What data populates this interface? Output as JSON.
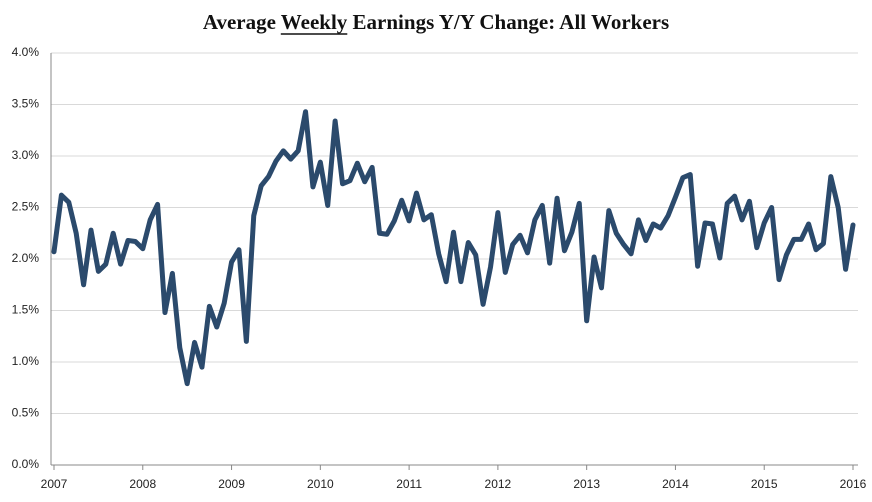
{
  "chart_data": {
    "type": "line",
    "title": "Average Weekly Earnings Y/Y Change: All Workers",
    "categories": [
      "2007",
      null,
      null,
      null,
      null,
      null,
      null,
      null,
      null,
      null,
      null,
      null,
      "2008",
      null,
      null,
      null,
      null,
      null,
      null,
      null,
      null,
      null,
      null,
      null,
      "2009",
      null,
      null,
      null,
      null,
      null,
      null,
      null,
      null,
      null,
      null,
      null,
      "2010",
      null,
      null,
      null,
      null,
      null,
      null,
      null,
      null,
      null,
      null,
      null,
      "2011",
      null,
      null,
      null,
      null,
      null,
      null,
      null,
      null,
      null,
      null,
      null,
      "2012",
      null,
      null,
      null,
      null,
      null,
      null,
      null,
      null,
      null,
      null,
      null,
      "2013",
      null,
      null,
      null,
      null,
      null,
      null,
      null,
      null,
      null,
      null,
      null,
      "2014",
      null,
      null,
      null,
      null,
      null,
      null,
      null,
      null,
      null,
      null,
      null,
      "2015",
      null,
      null,
      null,
      null,
      null,
      null,
      null,
      null,
      null,
      null,
      null,
      "2016"
    ],
    "values": [
      2.07,
      2.62,
      2.55,
      2.25,
      1.75,
      2.28,
      1.88,
      1.95,
      2.25,
      1.95,
      2.18,
      2.17,
      2.1,
      2.38,
      2.53,
      1.48,
      1.86,
      1.14,
      0.79,
      1.19,
      0.95,
      1.54,
      1.34,
      1.57,
      1.97,
      2.09,
      1.2,
      2.42,
      2.71,
      2.8,
      2.95,
      3.05,
      2.97,
      3.05,
      3.43,
      2.7,
      2.94,
      2.52,
      3.34,
      2.73,
      2.76,
      2.93,
      2.75,
      2.89,
      2.25,
      2.24,
      2.37,
      2.57,
      2.37,
      2.64,
      2.38,
      2.43,
      2.05,
      1.78,
      2.26,
      1.78,
      2.16,
      2.04,
      1.56,
      1.92,
      2.45,
      1.87,
      2.14,
      2.23,
      2.06,
      2.38,
      2.52,
      1.96,
      2.59,
      2.08,
      2.26,
      2.54,
      1.4,
      2.02,
      1.72,
      2.47,
      2.25,
      2.14,
      2.05,
      2.38,
      2.18,
      2.34,
      2.3,
      2.42,
      2.6,
      2.79,
      2.82,
      1.93,
      2.35,
      2.34,
      2.01,
      2.54,
      2.61,
      2.38,
      2.56,
      2.11,
      2.35,
      2.5,
      1.8,
      2.04,
      2.19,
      2.19,
      2.34,
      2.09,
      2.15,
      2.8,
      2.5,
      1.9,
      2.33
    ],
    "color": "#2b4a6c",
    "ylim": [
      0,
      4
    ],
    "yticks": [
      {
        "value": 0,
        "label": "0.0%"
      },
      {
        "value": 0.5,
        "label": "0.5%"
      },
      {
        "value": 1,
        "label": "1.0%"
      },
      {
        "value": 1.5,
        "label": "1.5%"
      },
      {
        "value": 2,
        "label": "2.0%"
      },
      {
        "value": 2.5,
        "label": "2.5%"
      },
      {
        "value": 3,
        "label": "3.0%"
      },
      {
        "value": 3.5,
        "label": "3.5%"
      },
      {
        "value": 4,
        "label": "4.0%"
      }
    ],
    "grid": true
  }
}
